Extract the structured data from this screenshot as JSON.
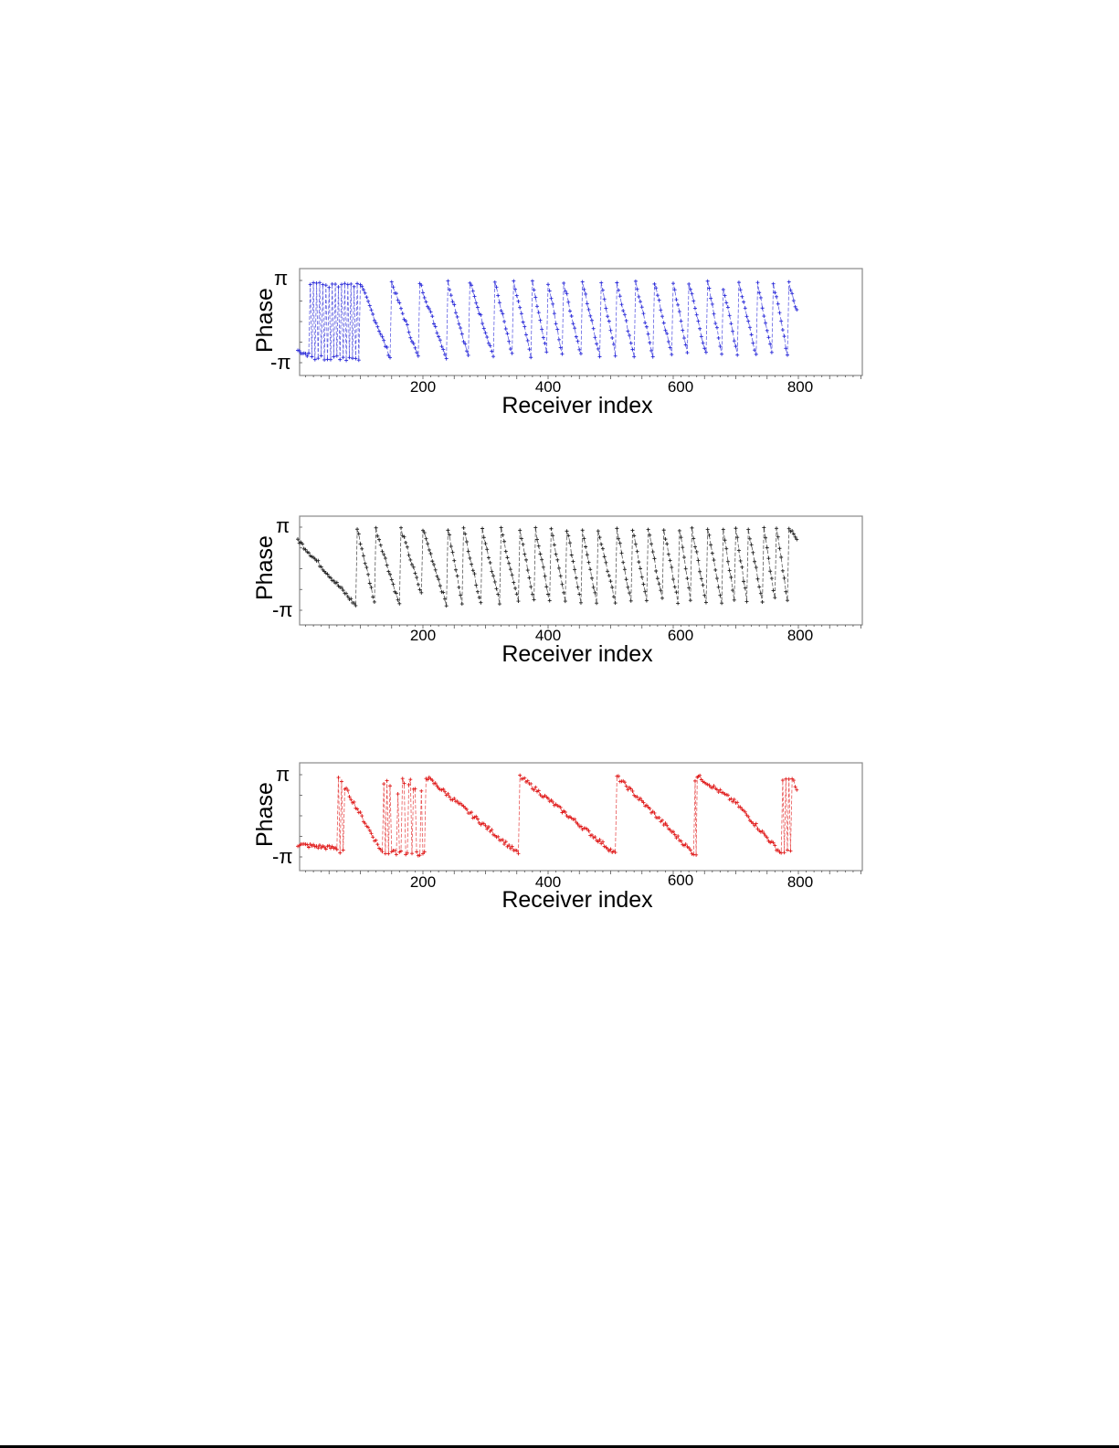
{
  "figure": {
    "panels": [
      {
        "id": "blue",
        "color": "#2b2bd9",
        "ylabel": "Phase",
        "ytick_top": "π",
        "ytick_bottom": "-π",
        "xlabel": "Receiver index",
        "xticks": [
          "200",
          "400",
          "600",
          "800"
        ]
      },
      {
        "id": "black",
        "color": "#222222",
        "ylabel": "Phase",
        "ytick_top": "π",
        "ytick_bottom": "-π",
        "xlabel": "Receiver index",
        "xticks": [
          "200",
          "400",
          "600",
          "800"
        ]
      },
      {
        "id": "red",
        "color": "#e01b1b",
        "ylabel": "Phase",
        "ytick_top": "π",
        "ytick_bottom": "-π",
        "xlabel": "Receiver index",
        "xticks": [
          "200",
          "400",
          "600",
          "800"
        ]
      }
    ]
  },
  "chart_data": [
    {
      "type": "line",
      "title": "",
      "xlabel": "Receiver index",
      "ylabel": "Phase",
      "xlim": [
        0,
        900
      ],
      "ylim": [
        -3.1416,
        3.1416
      ],
      "xticks": [
        200,
        400,
        600,
        800
      ],
      "yticks": [
        "-π",
        "π"
      ],
      "series": [
        {
          "name": "blue",
          "color": "#2b2bd9",
          "marker": "+",
          "linestyle": "dashed",
          "description": "Wrapped phase with rapid flipping between ±π for index ~20-100, then sawtooth with ~29 wraps between 100 and 800",
          "segments": [
            [
              0,
              -2.2,
              20,
              -2.6
            ],
            [
              20,
              -2.4,
              100,
              2.9,
              "noisy-flip"
            ],
            [
              100,
              2.9,
              150,
              -3.0
            ],
            [
              150,
              3.0,
              195,
              -3.1
            ],
            [
              195,
              3.0,
              240,
              -3.1
            ],
            [
              240,
              3.0,
              275,
              -3.1
            ],
            [
              275,
              3.0,
              315,
              -3.0
            ],
            [
              315,
              3.0,
              345,
              -3.1
            ],
            [
              345,
              3.0,
              375,
              -3.1
            ],
            [
              375,
              3.0,
              400,
              -3.0
            ],
            [
              400,
              3.0,
              425,
              -3.1
            ],
            [
              425,
              3.0,
              455,
              -3.1
            ],
            [
              455,
              3.0,
              485,
              -3.1
            ],
            [
              485,
              3.0,
              510,
              -3.1
            ],
            [
              510,
              3.0,
              540,
              -3.1
            ],
            [
              540,
              3.0,
              570,
              -3.1
            ],
            [
              570,
              3.0,
              600,
              -3.1
            ],
            [
              600,
              3.0,
              625,
              -3.0
            ],
            [
              625,
              3.0,
              655,
              -3.0
            ],
            [
              655,
              3.0,
              680,
              -3.0
            ],
            [
              680,
              2.6,
              705,
              -3.0
            ],
            [
              705,
              3.0,
              735,
              -3.0
            ],
            [
              735,
              3.0,
              760,
              -3.1
            ],
            [
              760,
              3.0,
              785,
              -3.1
            ],
            [
              785,
              3.0,
              800,
              0.3
            ]
          ]
        }
      ]
    },
    {
      "type": "line",
      "title": "",
      "xlabel": "Receiver index",
      "ylabel": "Phase",
      "xlim": [
        0,
        900
      ],
      "ylim": [
        -3.1416,
        3.1416
      ],
      "xticks": [
        200,
        400,
        600,
        800
      ],
      "yticks": [
        "-π",
        "π"
      ],
      "series": [
        {
          "name": "black",
          "color": "#222222",
          "marker": "+",
          "linestyle": "dashed",
          "description": "Wrapped phase: slow decline from ~2.2 to -π over 0-95, then regular sawtooth with ~28 wraps",
          "segments": [
            [
              0,
              2.2,
              95,
              -2.9
            ],
            [
              95,
              3.0,
              125,
              -3.0
            ],
            [
              125,
              3.0,
              165,
              -3.1
            ],
            [
              165,
              3.0,
              200,
              -2.3
            ],
            [
              200,
              3.0,
              240,
              -3.1
            ],
            [
              240,
              3.0,
              265,
              -3.1
            ],
            [
              265,
              3.0,
              295,
              -3.1
            ],
            [
              295,
              3.0,
              325,
              -3.1
            ],
            [
              325,
              3.0,
              355,
              -3.1
            ],
            [
              355,
              3.0,
              380,
              -3.1
            ],
            [
              380,
              3.0,
              405,
              -3.1
            ],
            [
              405,
              3.0,
              430,
              -3.1
            ],
            [
              430,
              3.0,
              455,
              -3.1
            ],
            [
              455,
              3.0,
              480,
              -3.1
            ],
            [
              480,
              3.0,
              510,
              -3.1
            ],
            [
              510,
              3.0,
              535,
              -3.1
            ],
            [
              535,
              3.0,
              560,
              -3.1
            ],
            [
              560,
              3.0,
              585,
              -3.0
            ],
            [
              585,
              3.0,
              610,
              -3.1
            ],
            [
              610,
              3.0,
              630,
              -3.0
            ],
            [
              630,
              3.0,
              655,
              -3.1
            ],
            [
              655,
              3.0,
              680,
              -3.1
            ],
            [
              680,
              3.0,
              700,
              -3.1
            ],
            [
              700,
              3.0,
              720,
              -3.1
            ],
            [
              720,
              3.0,
              745,
              -3.1
            ],
            [
              745,
              3.0,
              765,
              -3.1
            ],
            [
              765,
              3.0,
              785,
              -3.1
            ],
            [
              785,
              3.0,
              800,
              2.2
            ]
          ]
        }
      ]
    },
    {
      "type": "line",
      "title": "",
      "xlabel": "Receiver index",
      "ylabel": "Phase",
      "xlim": [
        0,
        900
      ],
      "ylim": [
        -3.1416,
        3.1416
      ],
      "xticks": [
        200,
        400,
        600,
        800
      ],
      "yticks": [
        "-π",
        "π"
      ],
      "series": [
        {
          "name": "red",
          "color": "#e01b1b",
          "marker": "+",
          "linestyle": "dashed",
          "description": "Wrapped phase with long slow sawtooth: ~5 wraps, occasional spurious jumps near 70-80, 130-210, 635-645, 770-790",
          "segments": [
            [
              0,
              -2.2,
              65,
              -2.5
            ],
            [
              65,
              3.0,
              75,
              -3.0,
              "noisy-flip"
            ],
            [
              75,
              2.2,
              135,
              -2.8
            ],
            [
              135,
              -2.8,
              205,
              -2.9,
              "spikes"
            ],
            [
              205,
              3.0,
              355,
              -3.0
            ],
            [
              355,
              3.0,
              510,
              -3.0
            ],
            [
              510,
              3.0,
              635,
              -3.0
            ],
            [
              635,
              3.0,
              640,
              -3.0,
              "noisy-flip"
            ],
            [
              640,
              3.0,
              700,
              1.0
            ],
            [
              700,
              1.0,
              775,
              -3.0
            ],
            [
              775,
              3.0,
              790,
              -3.0,
              "noisy-flip"
            ],
            [
              790,
              3.0,
              800,
              1.5
            ]
          ]
        }
      ]
    }
  ]
}
